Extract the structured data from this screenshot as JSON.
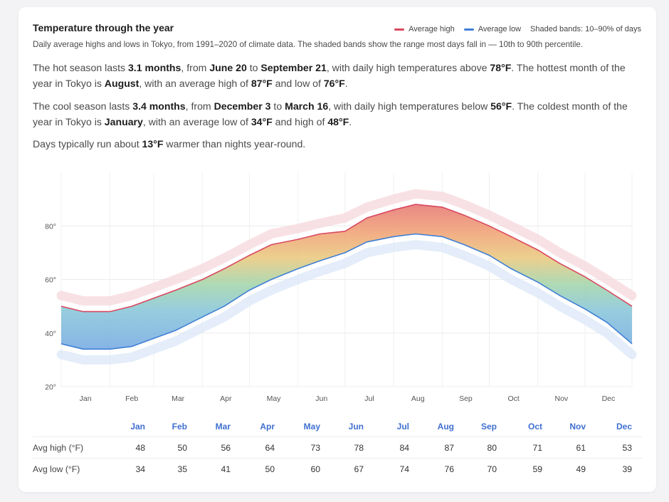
{
  "card": {
    "title": "Temperature through the year",
    "subtitle": "Daily average highs and lows in Tokyo, from 1991–2020 of climate data. The shaded bands show the range most days fall in — 10th to 90th percentile.",
    "legend": {
      "high_label": "Average high",
      "low_label": "Average low",
      "band_label": "Shaded bands: 10–90% of days"
    },
    "paragraphs": [
      [
        {
          "t": "The hot season lasts "
        },
        {
          "t": "3.1 months",
          "b": true
        },
        {
          "t": ", from "
        },
        {
          "t": "June 20",
          "b": true
        },
        {
          "t": " to "
        },
        {
          "t": "September 21",
          "b": true
        },
        {
          "t": ", with daily high temperatures above "
        },
        {
          "t": "78°F",
          "b": true
        },
        {
          "t": ". The hottest month of the year in Tokyo is "
        },
        {
          "t": "August",
          "b": true
        },
        {
          "t": ", with an average high of "
        },
        {
          "t": "87°F",
          "b": true
        },
        {
          "t": " and low of "
        },
        {
          "t": "76°F",
          "b": true
        },
        {
          "t": "."
        }
      ],
      [
        {
          "t": "The cool season lasts "
        },
        {
          "t": "3.4 months",
          "b": true
        },
        {
          "t": ", from "
        },
        {
          "t": "December 3",
          "b": true
        },
        {
          "t": " to "
        },
        {
          "t": "March 16",
          "b": true
        },
        {
          "t": ", with daily high temperatures below "
        },
        {
          "t": "56°F",
          "b": true
        },
        {
          "t": ". The coldest month of the year in Tokyo is "
        },
        {
          "t": "January",
          "b": true
        },
        {
          "t": ", with an average low of "
        },
        {
          "t": "34°F",
          "b": true
        },
        {
          "t": " and high of "
        },
        {
          "t": "48°F",
          "b": true
        },
        {
          "t": "."
        }
      ],
      [
        {
          "t": "Days typically run about "
        },
        {
          "t": "13°F",
          "b": true
        },
        {
          "t": " warmer than nights year-round."
        }
      ]
    ]
  },
  "colors": {
    "high": "#d9475f",
    "low": "#3f7fd6",
    "month_header": "#3f6fd1"
  },
  "table": {
    "row_high_label": "Avg high (°F)",
    "row_low_label": "Avg low (°F)"
  },
  "chart_data": {
    "type": "area",
    "ylim": [
      20,
      100
    ],
    "yticks": [
      20,
      40,
      60,
      80
    ],
    "ytick_labels": [
      "20°",
      "40°",
      "60°",
      "80°"
    ],
    "grid": true,
    "legend_position": "top-right",
    "categories": [
      "Jan",
      "Feb",
      "Mar",
      "Apr",
      "May",
      "Jun",
      "Jul",
      "Aug",
      "Sep",
      "Oct",
      "Nov",
      "Dec"
    ],
    "x": [
      1,
      15,
      32,
      46,
      60,
      74,
      91,
      105,
      121,
      135,
      152,
      166,
      182,
      196,
      213,
      227,
      244,
      258,
      274,
      288,
      305,
      319,
      335,
      349,
      365
    ],
    "series": [
      {
        "name": "Average high",
        "values": [
          50,
          48,
          48,
          50,
          53,
          56,
          60,
          64,
          69,
          73,
          75,
          77,
          78,
          83,
          86,
          88,
          87,
          84,
          80,
          76,
          71,
          66,
          61,
          56,
          50
        ]
      },
      {
        "name": "Average low",
        "values": [
          36,
          34,
          34,
          35,
          38,
          41,
          46,
          50,
          56,
          60,
          64,
          67,
          70,
          74,
          76,
          77,
          76,
          73,
          69,
          64,
          59,
          54,
          49,
          44,
          36
        ]
      }
    ],
    "percentile_band": {
      "high_p90": [
        54,
        52,
        52,
        54,
        57,
        60,
        64,
        68,
        73,
        77,
        79,
        81,
        83,
        87,
        90,
        92,
        91,
        88,
        84,
        80,
        75,
        70,
        65,
        60,
        54
      ],
      "low_p10": [
        32,
        30,
        30,
        31,
        34,
        37,
        42,
        46,
        52,
        56,
        60,
        63,
        66,
        70,
        72,
        73,
        72,
        69,
        65,
        60,
        55,
        50,
        45,
        40,
        32
      ]
    },
    "monthly": {
      "months": [
        "Jan",
        "Feb",
        "Mar",
        "Apr",
        "May",
        "Jun",
        "Jul",
        "Aug",
        "Sep",
        "Oct",
        "Nov",
        "Dec"
      ],
      "avg_high": [
        48,
        50,
        56,
        64,
        73,
        78,
        84,
        87,
        80,
        71,
        61,
        53
      ],
      "avg_low": [
        34,
        35,
        41,
        50,
        60,
        67,
        74,
        76,
        70,
        59,
        49,
        39
      ]
    }
  }
}
